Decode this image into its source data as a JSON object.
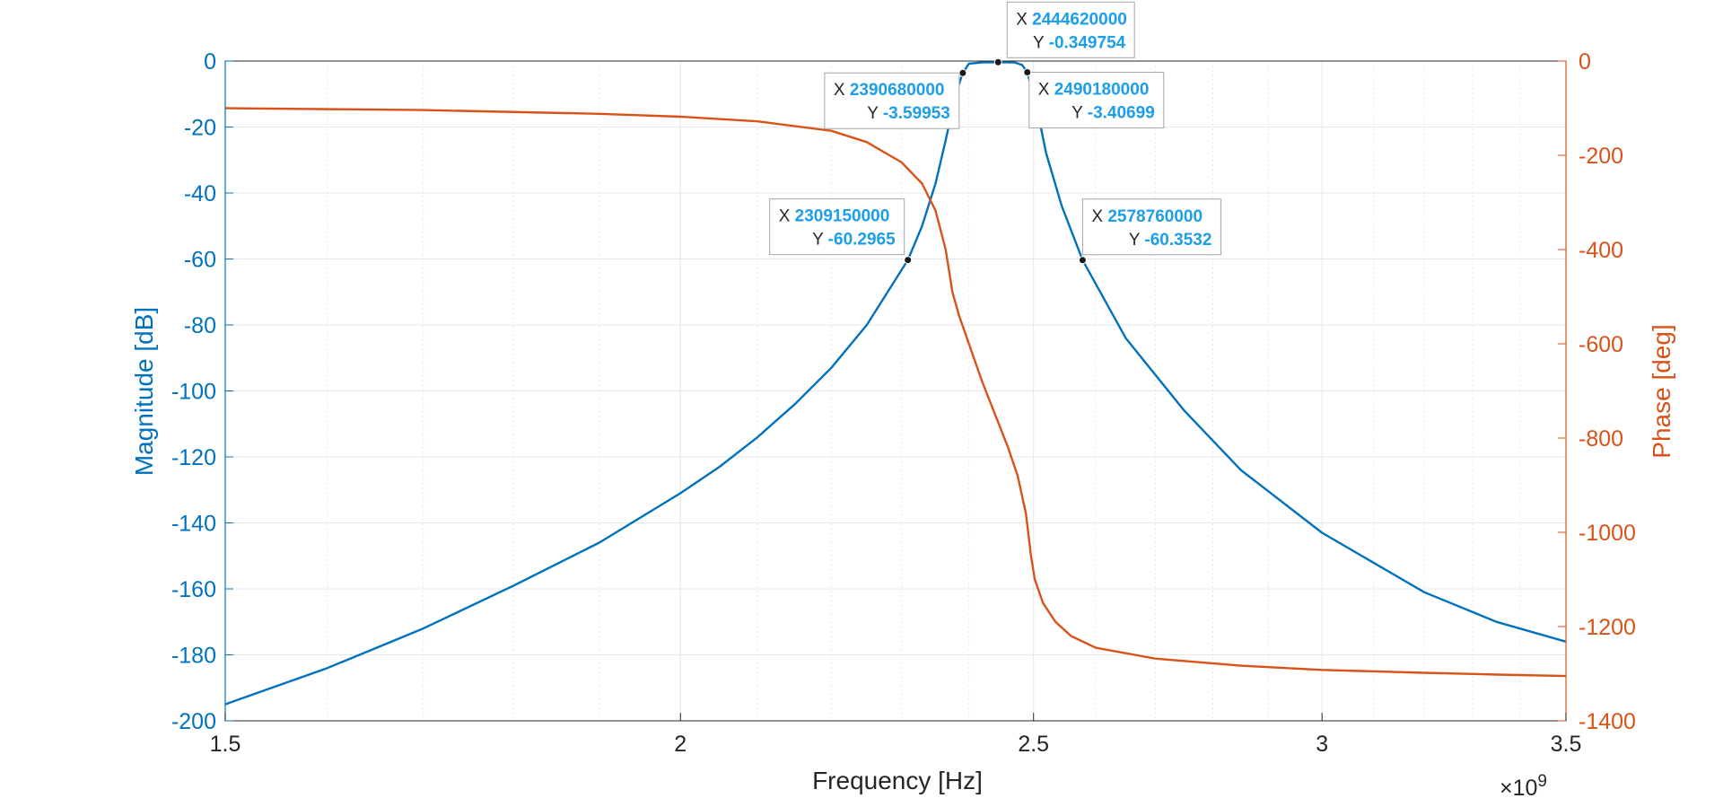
{
  "chart_data": {
    "type": "line",
    "xlabel": "Frequency [Hz]",
    "ylabel_left": "Magnitude [dB]",
    "ylabel_right": "Phase [deg]",
    "x_exponent_label": "×10",
    "x_exponent_power": "9",
    "xlim": [
      1500000000,
      3500000000
    ],
    "ylim_left": [
      -200,
      0
    ],
    "ylim_right": [
      -1400,
      0
    ],
    "x_ticks": [
      1500000000,
      2000000000,
      2500000000,
      3000000000,
      3500000000
    ],
    "x_tick_labels": [
      "1.5",
      "2",
      "2.5",
      "3",
      "3.5"
    ],
    "y_left_ticks": [
      0,
      -20,
      -40,
      -60,
      -80,
      -100,
      -120,
      -140,
      -160,
      -180,
      -200
    ],
    "y_left_tick_labels": [
      "0",
      "-20",
      "-40",
      "-60",
      "-80",
      "-100",
      "-120",
      "-140",
      "-160",
      "-180",
      "-200"
    ],
    "y_right_ticks": [
      0,
      -200,
      -400,
      -600,
      -800,
      -1000,
      -1200,
      -1400
    ],
    "y_right_tick_labels": [
      "0",
      "-200",
      "-400",
      "-600",
      "-800",
      "-1000",
      "-1200",
      "-1400"
    ],
    "grid": true,
    "x_scale": "log",
    "colors": {
      "magnitude": "#0072BD",
      "phase": "#D95319",
      "datatip_value": "#1C9EE8",
      "grid": "#E3E8EC"
    },
    "series": [
      {
        "axis": "left",
        "points": [
          [
            1500000000,
            -195
          ],
          [
            1600000000,
            -184
          ],
          [
            1700000000,
            -172
          ],
          [
            1800000000,
            -159
          ],
          [
            1900000000,
            -146
          ],
          [
            2000000000,
            -131
          ],
          [
            2050000000,
            -123
          ],
          [
            2100000000,
            -114
          ],
          [
            2150000000,
            -104
          ],
          [
            2200000000,
            -93
          ],
          [
            2250000000,
            -80
          ],
          [
            2309150000,
            -60.2965
          ],
          [
            2330000000,
            -50
          ],
          [
            2350000000,
            -37
          ],
          [
            2365000000,
            -24
          ],
          [
            2380000000,
            -10
          ],
          [
            2390680000,
            -3.59953
          ],
          [
            2400000000,
            -0.8
          ],
          [
            2420000000,
            -0.4
          ],
          [
            2444620000,
            -0.349754
          ],
          [
            2470000000,
            -0.4
          ],
          [
            2482000000,
            -1.2
          ],
          [
            2490180000,
            -3.40699
          ],
          [
            2505000000,
            -14
          ],
          [
            2520000000,
            -28
          ],
          [
            2545000000,
            -44
          ],
          [
            2578760000,
            -60.3532
          ],
          [
            2650000000,
            -84
          ],
          [
            2750000000,
            -106
          ],
          [
            2850000000,
            -124
          ],
          [
            3000000000,
            -143
          ],
          [
            3200000000,
            -161
          ],
          [
            3350000000,
            -170
          ],
          [
            3500000000,
            -176
          ]
        ]
      },
      {
        "axis": "right",
        "points": [
          [
            1500000000,
            -100
          ],
          [
            1700000000,
            -104
          ],
          [
            1900000000,
            -112
          ],
          [
            2000000000,
            -118
          ],
          [
            2100000000,
            -128
          ],
          [
            2200000000,
            -148
          ],
          [
            2250000000,
            -172
          ],
          [
            2300000000,
            -215
          ],
          [
            2330000000,
            -260
          ],
          [
            2350000000,
            -318
          ],
          [
            2365000000,
            -400
          ],
          [
            2375000000,
            -490
          ],
          [
            2385000000,
            -540
          ],
          [
            2400000000,
            -600
          ],
          [
            2420000000,
            -680
          ],
          [
            2440000000,
            -750
          ],
          [
            2460000000,
            -820
          ],
          [
            2475000000,
            -880
          ],
          [
            2488000000,
            -960
          ],
          [
            2496000000,
            -1050
          ],
          [
            2502000000,
            -1100
          ],
          [
            2515000000,
            -1150
          ],
          [
            2535000000,
            -1190
          ],
          [
            2560000000,
            -1220
          ],
          [
            2600000000,
            -1245
          ],
          [
            2700000000,
            -1268
          ],
          [
            2850000000,
            -1283
          ],
          [
            3000000000,
            -1292
          ],
          [
            3200000000,
            -1298
          ],
          [
            3350000000,
            -1302
          ],
          [
            3500000000,
            -1305
          ]
        ]
      }
    ],
    "datatips": [
      {
        "x_label": "X",
        "y_label": "Y",
        "x": "2444620000",
        "y": "-0.349754",
        "xv": 2444620000,
        "yv": -0.349754
      },
      {
        "x_label": "X",
        "y_label": "Y",
        "x": "2390680000",
        "y": "-3.59953",
        "xv": 2390680000,
        "yv": -3.59953
      },
      {
        "x_label": "X",
        "y_label": "Y",
        "x": "2490180000",
        "y": "-3.40699",
        "xv": 2490180000,
        "yv": -3.40699
      },
      {
        "x_label": "X",
        "y_label": "Y",
        "x": "2309150000",
        "y": "-60.2965",
        "xv": 2309150000,
        "yv": -60.2965
      },
      {
        "x_label": "X",
        "y_label": "Y",
        "x": "2578760000",
        "y": "-60.3532",
        "xv": 2578760000,
        "yv": -60.3532
      }
    ]
  }
}
